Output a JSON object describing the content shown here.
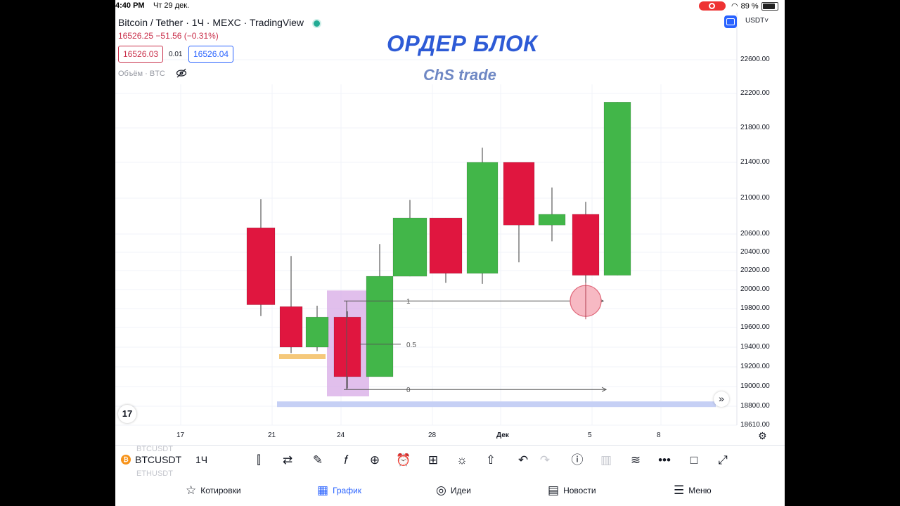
{
  "status_bar": {
    "time": "4:40 PM",
    "date": "Чт 29 дек.",
    "battery": "89 %",
    "battery_level": 0.89
  },
  "header": {
    "symbol_title": "Bitcoin / Tether · 1Ч · MEXC · TradingView",
    "price_change": "16526.25 −51.56 (−0.31%)",
    "sell_price": "16526.03",
    "spread": "0.01",
    "buy_price": "16526.04",
    "volume_label": "Объём · BTC",
    "currency": "USDT",
    "live_color": "#22ab94"
  },
  "overlay": {
    "title": "ОРДЕР БЛОК",
    "subtitle": "ChS trade"
  },
  "chart_data": {
    "type": "candlestick",
    "y_axis_labels": [
      "22600.00",
      "22200.00",
      "21800.00",
      "21400.00",
      "21000.00",
      "20600.00",
      "20400.00",
      "20200.00",
      "20000.00",
      "19800.00",
      "19600.00",
      "19400.00",
      "19200.00",
      "19000.00",
      "18800.00",
      "18610.00"
    ],
    "x_axis_labels": [
      "17",
      "21",
      "24",
      "28",
      "Дек",
      "5",
      "8"
    ],
    "candles": [
      {
        "open": 20670,
        "high": 20990,
        "low": 19720,
        "close": 19840,
        "color": "red"
      },
      {
        "open": 19820,
        "high": 20360,
        "low": 19340,
        "close": 19400,
        "color": "red"
      },
      {
        "open": 19400,
        "high": 19830,
        "low": 19360,
        "close": 19710,
        "color": "green"
      },
      {
        "open": 19710,
        "high": 19770,
        "low": 18980,
        "close": 19100,
        "color": "red"
      },
      {
        "open": 19100,
        "high": 20490,
        "low": 19100,
        "close": 20140,
        "color": "green"
      },
      {
        "open": 20140,
        "high": 20980,
        "low": 20140,
        "close": 20780,
        "color": "green"
      },
      {
        "open": 20780,
        "high": 20780,
        "low": 20070,
        "close": 20170,
        "color": "red"
      },
      {
        "open": 20170,
        "high": 21570,
        "low": 20060,
        "close": 21400,
        "color": "green"
      },
      {
        "open": 21400,
        "high": 21400,
        "low": 20290,
        "close": 20700,
        "color": "red"
      },
      {
        "open": 20700,
        "high": 21120,
        "low": 20520,
        "close": 20820,
        "color": "green"
      },
      {
        "open": 20820,
        "high": 20960,
        "low": 19730,
        "close": 20150,
        "color": "red"
      },
      {
        "open": 20150,
        "high": 22100,
        "low": 20150,
        "close": 22100,
        "color": "green"
      }
    ],
    "fib_levels": [
      {
        "label": "1",
        "price": 19880
      },
      {
        "label": "0.5",
        "price": 19430
      },
      {
        "label": "0",
        "price": 18970
      }
    ],
    "colors": {
      "up": "#42b649",
      "down": "#e0163f",
      "order_block": "#d7a9e6",
      "support_band": "#c6d0f5",
      "small_band": "#f5c87a",
      "target": "#f7b9c3"
    }
  },
  "toolbar": {
    "ticker": "BTCUSDT",
    "interval": "1Ч",
    "ghost_above": "BTCUSDT",
    "ghost_below": "ETHUSDT"
  },
  "tabs": [
    {
      "label": "Котировки",
      "icon": "☆"
    },
    {
      "label": "График",
      "icon": "▦"
    },
    {
      "label": "Идеи",
      "icon": "◎"
    },
    {
      "label": "Новости",
      "icon": "▤"
    },
    {
      "label": "Меню",
      "icon": "☰"
    }
  ]
}
